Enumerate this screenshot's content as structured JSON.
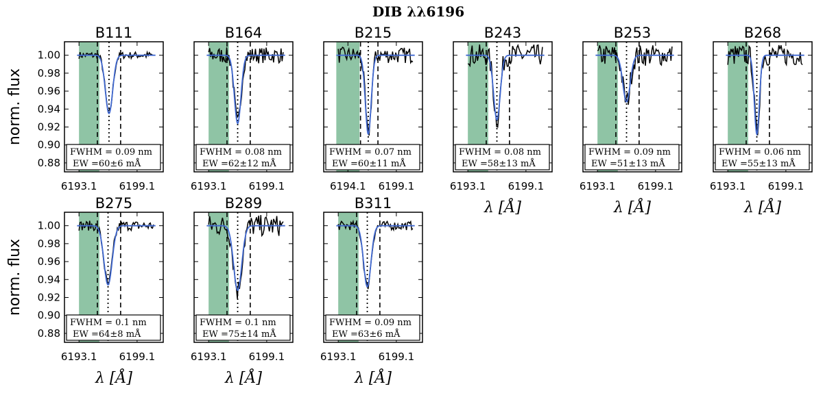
{
  "chart_data": {
    "type": "line",
    "title": "DIB λλ6196",
    "ylabel": "norm. flux",
    "xlabel": "λ [Å]",
    "ylim": [
      0.87,
      1.015
    ],
    "yticks": [
      "1.00",
      "0.98",
      "0.96",
      "0.94",
      "0.92",
      "0.90",
      "0.88"
    ],
    "ytick_values": [
      1.0,
      0.98,
      0.96,
      0.94,
      0.92,
      0.9,
      0.88
    ],
    "xlim": [
      6191.6,
      6201.8
    ],
    "colors": {
      "fit": "#4169d1",
      "band": "#8fc4a5",
      "spectrum": "#000000"
    },
    "panels": [
      {
        "name": "B111",
        "fwhm_text": "FWHM = 0.09 nm",
        "ew_text": "EW =60±6 mÅ",
        "xticks": [
          "6193.1",
          "6199.1"
        ],
        "tick_values": [
          6193.1,
          6199.1
        ],
        "band": [
          6193.1,
          6195.2
        ],
        "center": 6196.2,
        "sigma": 0.38,
        "depth": 0.065,
        "noise": 0.004,
        "dash": [
          6195.0,
          6197.4
        ]
      },
      {
        "name": "B164",
        "fwhm_text": "FWHM = 0.08 nm",
        "ew_text": "EW =62±12 mÅ",
        "xticks": [
          "6193.1",
          "6199.1"
        ],
        "tick_values": [
          6193.1,
          6199.1
        ],
        "band": [
          6193.1,
          6195.2
        ],
        "center": 6196.1,
        "sigma": 0.34,
        "depth": 0.076,
        "noise": 0.009,
        "dash": [
          6195.0,
          6197.4
        ]
      },
      {
        "name": "B215",
        "fwhm_text": "FWHM = 0.07 nm",
        "ew_text": "EW =60±11 mÅ",
        "xticks": [
          "6194.1",
          "6199.1"
        ],
        "tick_values": [
          6194.1,
          6199.1
        ],
        "band": [
          6192.9,
          6195.3
        ],
        "center": 6196.2,
        "sigma": 0.3,
        "depth": 0.088,
        "noise": 0.009,
        "dash": [
          6195.4,
          6197.2
        ]
      },
      {
        "name": "B243",
        "fwhm_text": "FWHM = 0.08 nm",
        "ew_text": "EW =58±13 mÅ",
        "xticks": [
          "6193.1",
          "6199.1"
        ],
        "tick_values": [
          6193.1,
          6199.1
        ],
        "band": [
          6193.1,
          6195.2
        ],
        "center": 6196.1,
        "sigma": 0.34,
        "depth": 0.072,
        "noise": 0.012,
        "dash": [
          6195.0,
          6197.4
        ]
      },
      {
        "name": "B253",
        "fwhm_text": "FWHM = 0.09 nm",
        "ew_text": "EW =51±13 mÅ",
        "xticks": [
          "6193.1",
          "6199.1"
        ],
        "tick_values": [
          6193.1,
          6199.1
        ],
        "band": [
          6193.1,
          6195.2
        ],
        "center": 6196.1,
        "sigma": 0.38,
        "depth": 0.052,
        "noise": 0.012,
        "dash": [
          6195.0,
          6197.4
        ]
      },
      {
        "name": "B268",
        "fwhm_text": "FWHM = 0.06 nm",
        "ew_text": "EW =55±13 mÅ",
        "xticks": [
          "6193.1",
          "6199.1"
        ],
        "tick_values": [
          6193.1,
          6199.1
        ],
        "band": [
          6193.1,
          6195.2
        ],
        "center": 6196.1,
        "sigma": 0.26,
        "depth": 0.088,
        "noise": 0.012,
        "dash": [
          6195.0,
          6197.4
        ]
      },
      {
        "name": "B275",
        "fwhm_text": "FWHM = 0.1 nm",
        "ew_text": "EW =64±8 mÅ",
        "xticks": [
          "6193.1",
          "6199.1"
        ],
        "tick_values": [
          6193.1,
          6199.1
        ],
        "band": [
          6193.1,
          6195.2
        ],
        "center": 6196.1,
        "sigma": 0.42,
        "depth": 0.066,
        "noise": 0.0055,
        "dash": [
          6195.0,
          6197.4
        ]
      },
      {
        "name": "B289",
        "fwhm_text": "FWHM = 0.1 nm",
        "ew_text": "EW =75±14 mÅ",
        "xticks": [
          "6193.1",
          "6199.1"
        ],
        "tick_values": [
          6193.1,
          6199.1
        ],
        "band": [
          6193.1,
          6195.2
        ],
        "center": 6196.1,
        "sigma": 0.42,
        "depth": 0.072,
        "noise": 0.012,
        "dash": [
          6195.0,
          6197.4
        ]
      },
      {
        "name": "B311",
        "fwhm_text": "FWHM = 0.09 nm",
        "ew_text": "EW =63±6 mÅ",
        "xticks": [
          "6193.1",
          "6199.1"
        ],
        "tick_values": [
          6193.1,
          6199.1
        ],
        "band": [
          6193.1,
          6195.2
        ],
        "center": 6196.1,
        "sigma": 0.38,
        "depth": 0.068,
        "noise": 0.005,
        "dash": [
          6195.0,
          6197.4
        ]
      }
    ]
  }
}
